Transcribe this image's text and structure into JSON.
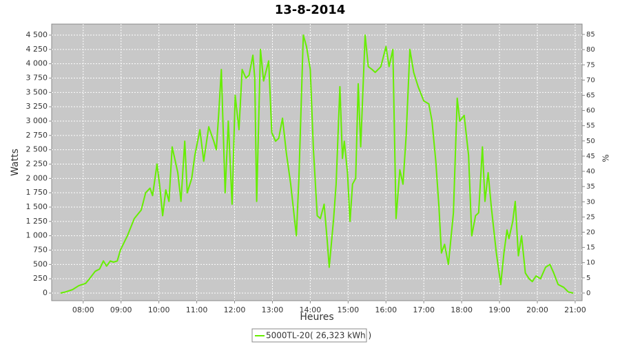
{
  "chart_data": {
    "type": "line",
    "title": "13-8-2014",
    "xlabel": "Heures",
    "ylabel": "Watts",
    "y2label": "%",
    "x": [
      444,
      452,
      463,
      473,
      484,
      490,
      499,
      506,
      512,
      517,
      523,
      528,
      534,
      539,
      550,
      561,
      572,
      579,
      586,
      590,
      597,
      601,
      606,
      611,
      616,
      621,
      627,
      630,
      635,
      641,
      645,
      652,
      657,
      665,
      671,
      679,
      687,
      691,
      695,
      699,
      705,
      710,
      716,
      721,
      727,
      732,
      738,
      743,
      749,
      752,
      755,
      761,
      766,
      774,
      779,
      785,
      790,
      796,
      802,
      809,
      818,
      822,
      829,
      834,
      840,
      845,
      851,
      856,
      862,
      867,
      870,
      877,
      881,
      887,
      891,
      894,
      899,
      903,
      907,
      912,
      916,
      920,
      927,
      932,
      938,
      943,
      952,
      960,
      965,
      971,
      976,
      982,
      987,
      992,
      998,
      1004,
      1011,
      1020,
      1028,
      1033,
      1039,
      1044,
      1048,
      1053,
      1059,
      1067,
      1073,
      1077,
      1084,
      1091,
      1096,
      1102,
      1107,
      1113,
      1117,
      1122,
      1127,
      1135,
      1142,
      1147,
      1152,
      1155,
      1161,
      1165,
      1170,
      1175,
      1181,
      1187,
      1192,
      1198,
      1205,
      1213,
      1220,
      1226,
      1233,
      1242,
      1249,
      1257
    ],
    "series": [
      {
        "name": "5000TL-20( 26,323 kWh )",
        "color": "#66ee00",
        "values": [
          0,
          20,
          60,
          130,
          170,
          250,
          380,
          420,
          560,
          470,
          560,
          540,
          560,
          750,
          1000,
          1300,
          1450,
          1750,
          1830,
          1700,
          2250,
          1900,
          1350,
          1800,
          1600,
          2550,
          2250,
          2100,
          1600,
          2650,
          1750,
          2000,
          2400,
          2850,
          2300,
          2900,
          2650,
          2500,
          3150,
          3900,
          1750,
          3000,
          1550,
          3450,
          2850,
          3900,
          3750,
          3800,
          4150,
          3750,
          1600,
          4250,
          3700,
          4050,
          2800,
          2650,
          2700,
          3050,
          2450,
          1900,
          1000,
          2000,
          4500,
          4300,
          3900,
          2500,
          1350,
          1300,
          1550,
          900,
          450,
          1300,
          1900,
          3600,
          2350,
          2650,
          2100,
          1250,
          1900,
          2000,
          3650,
          2550,
          4500,
          3950,
          3900,
          3850,
          3950,
          4300,
          3950,
          4250,
          1300,
          2150,
          1900,
          2750,
          4250,
          3850,
          3600,
          3350,
          3300,
          3000,
          2300,
          1500,
          700,
          850,
          500,
          1400,
          3400,
          3000,
          3100,
          2400,
          1000,
          1350,
          1400,
          2550,
          1600,
          2100,
          1500,
          700,
          150,
          700,
          1100,
          950,
          1250,
          1600,
          650,
          1000,
          350,
          250,
          200,
          300,
          250,
          450,
          500,
          350,
          150,
          100,
          20,
          0
        ]
      }
    ],
    "xlim": [
      430,
      1271
    ],
    "xticks": [
      {
        "value": 480,
        "label": "08:00"
      },
      {
        "value": 540,
        "label": "09:00"
      },
      {
        "value": 600,
        "label": "10:00"
      },
      {
        "value": 660,
        "label": "11:00"
      },
      {
        "value": 720,
        "label": "12:00"
      },
      {
        "value": 780,
        "label": "13:00"
      },
      {
        "value": 840,
        "label": "14:00"
      },
      {
        "value": 900,
        "label": "15:00"
      },
      {
        "value": 960,
        "label": "16:00"
      },
      {
        "value": 1020,
        "label": "17:00"
      },
      {
        "value": 1080,
        "label": "18:00"
      },
      {
        "value": 1140,
        "label": "19:00"
      },
      {
        "value": 1200,
        "label": "20:00"
      },
      {
        "value": 1260,
        "label": "21:00"
      }
    ],
    "ylim": [
      -132,
      4692
    ],
    "yticks": [
      0,
      250,
      500,
      750,
      {
        "value": 1000,
        "label": "1 000"
      },
      {
        "value": 1250,
        "label": "1 250"
      },
      {
        "value": 1500,
        "label": "1 500"
      },
      {
        "value": 1750,
        "label": "1 750"
      },
      {
        "value": 2000,
        "label": "2 000"
      },
      {
        "value": 2250,
        "label": "2 250"
      },
      {
        "value": 2500,
        "label": "2 500"
      },
      {
        "value": 2750,
        "label": "2 750"
      },
      {
        "value": 3000,
        "label": "3 000"
      },
      {
        "value": 3250,
        "label": "3 250"
      },
      {
        "value": 3500,
        "label": "3 500"
      },
      {
        "value": 3750,
        "label": "3 750"
      },
      {
        "value": 4000,
        "label": "4 000"
      },
      {
        "value": 4250,
        "label": "4 250"
      },
      {
        "value": 4500,
        "label": "4 500"
      }
    ],
    "y2lim": [
      -2.5,
      88.4
    ],
    "y2ticks": [
      0,
      5,
      10,
      15,
      20,
      25,
      30,
      35,
      40,
      45,
      50,
      55,
      60,
      65,
      70,
      75,
      80,
      85
    ],
    "grid": true,
    "legend": "bottom"
  }
}
